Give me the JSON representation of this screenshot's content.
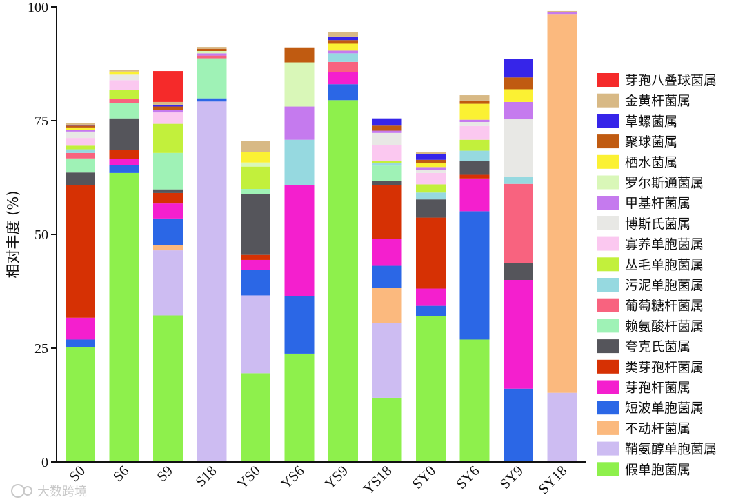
{
  "chart_data": {
    "type": "bar",
    "stacked": true,
    "ylabel": "相对丰度 (%)",
    "ylim": [
      0,
      100
    ],
    "yticks": [
      0,
      25,
      50,
      75,
      100
    ],
    "categories": [
      "S0",
      "S6",
      "S9",
      "S18",
      "YS0",
      "YS6",
      "YS9",
      "YS18",
      "SY0",
      "SY6",
      "SY9",
      "SY18"
    ],
    "legend_position": "right",
    "series": [
      {
        "name": "假单胞菌属",
        "color": "#8ef04c",
        "values": [
          25.2,
          63.5,
          32.2,
          0,
          19.5,
          23.8,
          79.5,
          14.1,
          32.1,
          26.9,
          0,
          0
        ]
      },
      {
        "name": "鞘氨醇单胞菌属",
        "color": "#cdbcf2",
        "values": [
          0,
          0,
          14.3,
          79.2,
          17.1,
          0,
          0,
          16.5,
          0,
          0,
          0,
          15.2
        ]
      },
      {
        "name": "不动杆菌属",
        "color": "#fbb97e",
        "values": [
          0,
          0,
          1.2,
          0,
          0,
          0,
          0,
          7.7,
          0,
          0,
          0,
          83.1
        ]
      },
      {
        "name": "短波单胞菌属",
        "color": "#2b67e6",
        "values": [
          1.7,
          1.7,
          5.8,
          0.7,
          5.6,
          12.6,
          3.5,
          4.8,
          2.2,
          28.2,
          16.1,
          0
        ]
      },
      {
        "name": "芽孢杆菌属",
        "color": "#f41fce",
        "values": [
          4.8,
          1.4,
          3.3,
          0,
          2.2,
          24.5,
          2.7,
          5.9,
          3.8,
          7.2,
          23.9,
          0
        ]
      },
      {
        "name": "类芽孢杆菌属",
        "color": "#d63104",
        "values": [
          29.1,
          2.0,
          2.3,
          0,
          1.1,
          0,
          0,
          11.9,
          15.6,
          0.8,
          0,
          0
        ]
      },
      {
        "name": "夸克氏菌属",
        "color": "#55555b",
        "values": [
          2.8,
          6.9,
          0.8,
          0,
          13.4,
          0,
          0,
          0.8,
          4.0,
          3.1,
          3.7,
          0
        ]
      },
      {
        "name": "赖氨酸杆菌属",
        "color": "#9ff2b6",
        "values": [
          3.1,
          3.3,
          8.0,
          8.8,
          1.1,
          0,
          0,
          3.4,
          0,
          0,
          0,
          0
        ]
      },
      {
        "name": "葡萄糖杆菌属",
        "color": "#f8637f",
        "values": [
          1.2,
          0.9,
          0,
          0.6,
          0,
          0,
          2.2,
          0,
          0,
          0,
          17.4,
          0
        ]
      },
      {
        "name": "污泥单胞菌属",
        "color": "#96d9e0",
        "values": [
          0.8,
          0,
          0,
          0,
          0,
          9.9,
          1.9,
          0.5,
          1.5,
          2.2,
          1.6,
          0
        ]
      },
      {
        "name": "丛毛单胞菌属",
        "color": "#c2f03c",
        "values": [
          0.8,
          2.0,
          6.4,
          0,
          4.9,
          0,
          0,
          0.6,
          1.8,
          2.4,
          0,
          0
        ]
      },
      {
        "name": "寡养单胞菌属",
        "color": "#fbc8f0",
        "values": [
          1.7,
          2.2,
          2.5,
          0,
          0,
          0,
          0,
          3.5,
          2.5,
          3.0,
          0,
          0
        ]
      },
      {
        "name": "博斯氏菌属",
        "color": "#e8e8e5",
        "values": [
          1.4,
          1.2,
          0,
          0,
          0,
          0,
          0,
          2.6,
          0.6,
          0.9,
          12.6,
          0
        ]
      },
      {
        "name": "甲基杆菌属",
        "color": "#c57aee",
        "values": [
          0.4,
          0,
          0.5,
          0.5,
          0,
          7.3,
          0.6,
          0.5,
          0.7,
          0.5,
          3.8,
          0.5
        ]
      },
      {
        "name": "罗尔斯通菌属",
        "color": "#d9f7b8",
        "values": [
          0,
          0,
          0,
          0.5,
          0.9,
          9.7,
          0,
          0,
          0,
          0,
          0,
          0
        ]
      },
      {
        "name": "栖水菌属",
        "color": "#fbf133",
        "values": [
          0.5,
          0.7,
          0,
          0,
          2.3,
          0,
          1.5,
          0,
          0.8,
          3.5,
          2.8,
          0
        ]
      },
      {
        "name": "聚球菌属",
        "color": "#c05b11",
        "values": [
          0.4,
          0,
          0.8,
          0.5,
          0,
          3.3,
          0.8,
          1.1,
          0.8,
          0.7,
          2.6,
          0
        ]
      },
      {
        "name": "草螺菌属",
        "color": "#3625e9",
        "values": [
          0.2,
          0,
          0.4,
          0,
          0,
          0,
          0.8,
          1.6,
          1.2,
          0,
          4.1,
          0
        ]
      },
      {
        "name": "金黄杆菌属",
        "color": "#d8b985",
        "values": [
          0.4,
          0.3,
          0.6,
          0.4,
          2.4,
          0,
          1.0,
          0,
          0.5,
          1.2,
          0,
          0.3
        ]
      },
      {
        "name": "芽孢八叠球菌属",
        "color": "#f52a2a",
        "values": [
          0,
          0,
          6.8,
          0,
          0,
          0,
          0,
          0,
          0,
          0,
          0,
          0
        ]
      }
    ]
  },
  "watermark": "大数跨境"
}
